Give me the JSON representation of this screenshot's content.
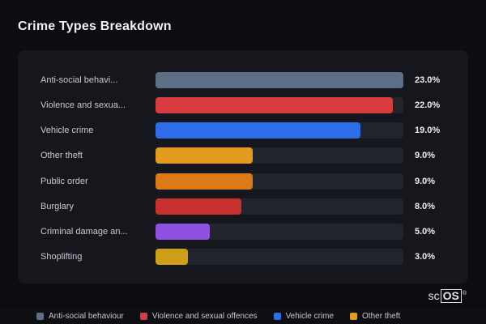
{
  "title": "Crime Types Breakdown",
  "logo": {
    "prefix": "sc",
    "boxed": "OS",
    "reg": "®"
  },
  "chart_data": {
    "type": "bar",
    "orientation": "horizontal",
    "title": "Crime Types Breakdown",
    "xlabel": "",
    "ylabel": "",
    "max_value": 23,
    "grid": false,
    "legend_position": "bottom",
    "categories": [
      "Anti-social behaviour",
      "Violence and sexual offences",
      "Vehicle crime",
      "Other theft",
      "Public order",
      "Burglary",
      "Criminal damage and arson",
      "Shoplifting"
    ],
    "display_labels": [
      "Anti-social behavi...",
      "Violence and sexua...",
      "Vehicle crime",
      "Other theft",
      "Public order",
      "Burglary",
      "Criminal damage an...",
      "Shoplifting"
    ],
    "values": [
      23,
      22,
      19,
      9,
      9,
      8,
      5,
      3
    ],
    "value_labels": [
      "23.0%",
      "22.0%",
      "19.0%",
      "9.0%",
      "9.0%",
      "8.0%",
      "5.0%",
      "3.0%"
    ],
    "bar_colors": [
      "#5d6e87",
      "#d93b40",
      "#2d6ee8",
      "#e39a1d",
      "#dd7a17",
      "#c93131",
      "#8e52e0",
      "#cc9f16"
    ],
    "track_color": "#22242b",
    "legend": [
      {
        "label": "Anti-social behaviour",
        "color": "#5d6e87"
      },
      {
        "label": "Violence and sexual offences",
        "color": "#d93b40"
      },
      {
        "label": "Vehicle crime",
        "color": "#2d6ee8"
      },
      {
        "label": "Other theft",
        "color": "#e39a1d"
      }
    ]
  }
}
